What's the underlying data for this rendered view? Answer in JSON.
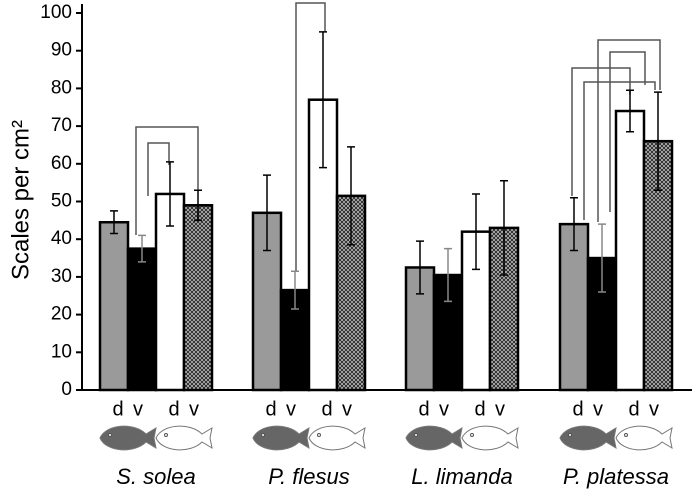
{
  "chart_data": {
    "type": "bar",
    "y_label": "Scales per cm²",
    "categories": [
      "S. solea",
      "P. flesus",
      "L. limanda",
      "P. platessa"
    ],
    "bar_labels": [
      "d",
      "v",
      "d",
      "v"
    ],
    "series": [
      {
        "color": "#9a9a9a",
        "values": [
          44.5,
          47,
          32.5,
          44
        ],
        "errors": [
          3,
          10,
          7,
          7
        ]
      },
      {
        "color": "#000000",
        "values": [
          37.5,
          26.5,
          30.5,
          35
        ],
        "errors": [
          3.5,
          5,
          7,
          9
        ]
      },
      {
        "color": "#ffffff",
        "values": [
          52,
          77,
          42,
          74
        ],
        "errors": [
          8.5,
          18,
          10,
          5.5
        ]
      },
      {
        "color": "#555555",
        "hatch": true,
        "values": [
          49,
          51.5,
          43,
          66
        ],
        "errors": [
          4,
          13,
          12.5,
          13
        ]
      }
    ],
    "ylim": [
      0,
      100
    ],
    "yticks": [
      0,
      10,
      20,
      30,
      40,
      50,
      60,
      70,
      80,
      90,
      100
    ]
  }
}
